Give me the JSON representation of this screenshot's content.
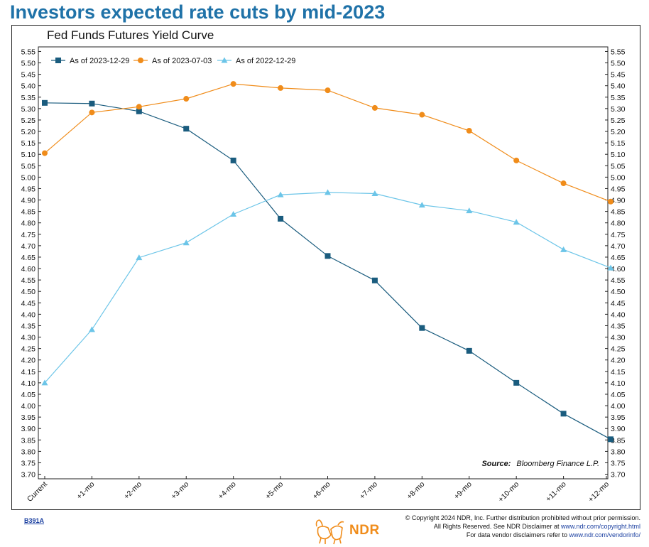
{
  "headline": "Investors expected rate cuts by mid-2023",
  "copyright": {
    "line1": "© Copyright 2024 NDR, Inc. Further distribution prohibited without prior permission.",
    "line2_text": "All Rights Reserved. See NDR Disclaimer at ",
    "line2_link": "www.ndr.com/copyright.html",
    "line3_text": "For data vendor disclaimers refer to ",
    "line3_link": "www.ndr.com/vendorinfo/"
  },
  "chart_code": "B391A",
  "logo_text": "NDR",
  "source_label": "Source:",
  "source_value": "Bloomberg Finance L.P.",
  "chart_data": {
    "type": "line",
    "title": "Fed Funds Futures Yield Curve",
    "xlabel": "",
    "ylabel": "",
    "categories": [
      "Current",
      "+1-mo",
      "+2-mo",
      "+3-mo",
      "+4-mo",
      "+5-mo",
      "+6-mo",
      "+7-mo",
      "+8-mo",
      "+9-mo",
      "+10-mo",
      "+11-mo",
      "+12-mo"
    ],
    "ylim": [
      3.68,
      5.57
    ],
    "yticks": [
      "5.55",
      "5.50",
      "5.45",
      "5.40",
      "5.35",
      "5.30",
      "5.25",
      "5.20",
      "5.15",
      "5.10",
      "5.05",
      "5.00",
      "4.95",
      "4.90",
      "4.85",
      "4.80",
      "4.75",
      "4.70",
      "4.65",
      "4.60",
      "4.55",
      "4.50",
      "4.45",
      "4.40",
      "4.35",
      "4.30",
      "4.25",
      "4.20",
      "4.15",
      "4.10",
      "4.05",
      "4.00",
      "3.95",
      "3.90",
      "3.85",
      "3.80",
      "3.75",
      "3.70"
    ],
    "grid": false,
    "legend_position": "top-left",
    "series": [
      {
        "name": "As of 2023-12-29",
        "color": "#1a5c7e",
        "marker": "square",
        "values": [
          5.325,
          5.322,
          5.288,
          5.212,
          5.073,
          4.818,
          4.655,
          4.548,
          4.34,
          4.24,
          4.1,
          3.965,
          3.853
        ]
      },
      {
        "name": "As of 2023-07-03",
        "color": "#f08c1a",
        "marker": "circle",
        "values": [
          5.105,
          5.283,
          5.308,
          5.343,
          5.408,
          5.39,
          5.38,
          5.303,
          5.273,
          5.203,
          5.073,
          4.973,
          4.893
        ]
      },
      {
        "name": "As of 2022-12-29",
        "color": "#6cc5e8",
        "marker": "triangle",
        "values": [
          4.1,
          4.333,
          4.648,
          4.713,
          4.838,
          4.923,
          4.933,
          4.928,
          4.878,
          4.853,
          4.803,
          4.683,
          4.603
        ]
      }
    ]
  }
}
